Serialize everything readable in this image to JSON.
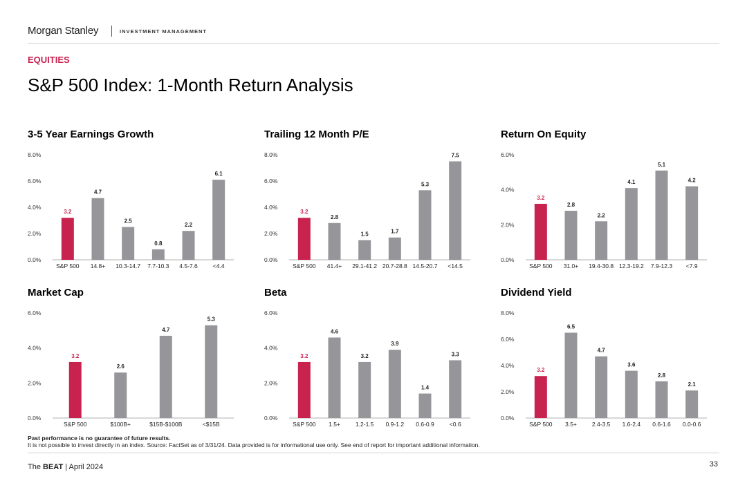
{
  "header": {
    "brand": "Morgan Stanley",
    "division": "INVESTMENT MANAGEMENT"
  },
  "section_label": "EQUITIES",
  "page_title": "S&P 500 Index: 1-Month Return Analysis",
  "colors": {
    "highlight": "#c8234f",
    "bar": "#96969a",
    "axis": "#b0b0b0"
  },
  "chart_data": [
    {
      "type": "bar",
      "title": "3-5 Year Earnings Growth",
      "categories": [
        "S&P 500",
        "14.8+",
        "10.3-14.7",
        "7.7-10.3",
        "4.5-7.6",
        "<4.4"
      ],
      "values": [
        3.2,
        4.7,
        2.5,
        0.8,
        2.2,
        6.1
      ],
      "value_labels": [
        "3.2",
        "4.7",
        "2.5",
        "0.8",
        "2.2",
        "6.1"
      ],
      "highlight_index": 0,
      "ylim": [
        0,
        8
      ],
      "yticks": [
        0,
        2,
        4,
        6,
        8
      ],
      "ytick_labels": [
        "0.0%",
        "2.0%",
        "4.0%",
        "6.0%",
        "8.0%"
      ]
    },
    {
      "type": "bar",
      "title": "Trailing 12 Month P/E",
      "categories": [
        "S&P 500",
        "41.4+",
        "29.1-41.2",
        "20.7-28.8",
        "14.5-20.7",
        "<14.5"
      ],
      "values": [
        3.2,
        2.8,
        1.5,
        1.7,
        5.3,
        7.5
      ],
      "value_labels": [
        "3.2",
        "2.8",
        "1.5",
        "1.7",
        "5.3",
        "7.5"
      ],
      "highlight_index": 0,
      "ylim": [
        0,
        8
      ],
      "yticks": [
        0,
        2,
        4,
        6,
        8
      ],
      "ytick_labels": [
        "0.0%",
        "2.0%",
        "4.0%",
        "6.0%",
        "8.0%"
      ]
    },
    {
      "type": "bar",
      "title": "Return On Equity",
      "categories": [
        "S&P 500",
        "31.0+",
        "19.4-30.8",
        "12.3-19.2",
        "7.9-12.3",
        "<7.9"
      ],
      "values": [
        3.2,
        2.8,
        2.2,
        4.1,
        5.1,
        4.2
      ],
      "value_labels": [
        "3.2",
        "2.8",
        "2.2",
        "4.1",
        "5.1",
        "4.2"
      ],
      "highlight_index": 0,
      "ylim": [
        0,
        6
      ],
      "yticks": [
        0,
        2,
        4,
        6
      ],
      "ytick_labels": [
        "0.0%",
        "2.0%",
        "4.0%",
        "6.0%"
      ]
    },
    {
      "type": "bar",
      "title": "Market Cap",
      "categories": [
        "S&P 500",
        "$100B+",
        "$15B-$100B",
        "<$15B"
      ],
      "values": [
        3.2,
        2.6,
        4.7,
        5.3
      ],
      "value_labels": [
        "3.2",
        "2.6",
        "4.7",
        "5.3"
      ],
      "highlight_index": 0,
      "ylim": [
        0,
        6
      ],
      "yticks": [
        0,
        2,
        4,
        6
      ],
      "ytick_labels": [
        "0.0%",
        "2.0%",
        "4.0%",
        "6.0%"
      ]
    },
    {
      "type": "bar",
      "title": "Beta",
      "categories": [
        "S&P 500",
        "1.5+",
        "1.2-1.5",
        "0.9-1.2",
        "0.6-0.9",
        "<0.6"
      ],
      "values": [
        3.2,
        4.6,
        3.2,
        3.9,
        1.4,
        3.3
      ],
      "value_labels": [
        "3.2",
        "4.6",
        "3.2",
        "3.9",
        "1.4",
        "3.3"
      ],
      "highlight_index": 0,
      "ylim": [
        0,
        6
      ],
      "yticks": [
        0,
        2,
        4,
        6
      ],
      "ytick_labels": [
        "0.0%",
        "2.0%",
        "4.0%",
        "6.0%"
      ]
    },
    {
      "type": "bar",
      "title": "Dividend Yield",
      "categories": [
        "S&P 500",
        "3.5+",
        "2.4-3.5",
        "1.6-2.4",
        "0.6-1.6",
        "0.0-0.6"
      ],
      "values": [
        3.2,
        6.5,
        4.7,
        3.6,
        2.8,
        2.1
      ],
      "value_labels": [
        "3.2",
        "6.5",
        "4.7",
        "3.6",
        "2.8",
        "2.1"
      ],
      "highlight_index": 0,
      "ylim": [
        0,
        8
      ],
      "yticks": [
        0,
        2,
        4,
        6,
        8
      ],
      "ytick_labels": [
        "0.0%",
        "2.0%",
        "4.0%",
        "6.0%",
        "8.0%"
      ]
    }
  ],
  "footnote": {
    "bold_line": "Past performance is no guarantee of future results.",
    "line": "It is not possible to invest directly in an index. Source: FactSet as of 3/31/24. Data provided is for informational use only. See end of report for important additional information."
  },
  "footer": {
    "prefix": "The",
    "publication": "BEAT",
    "date": "| April 2024",
    "page_number": "33"
  }
}
